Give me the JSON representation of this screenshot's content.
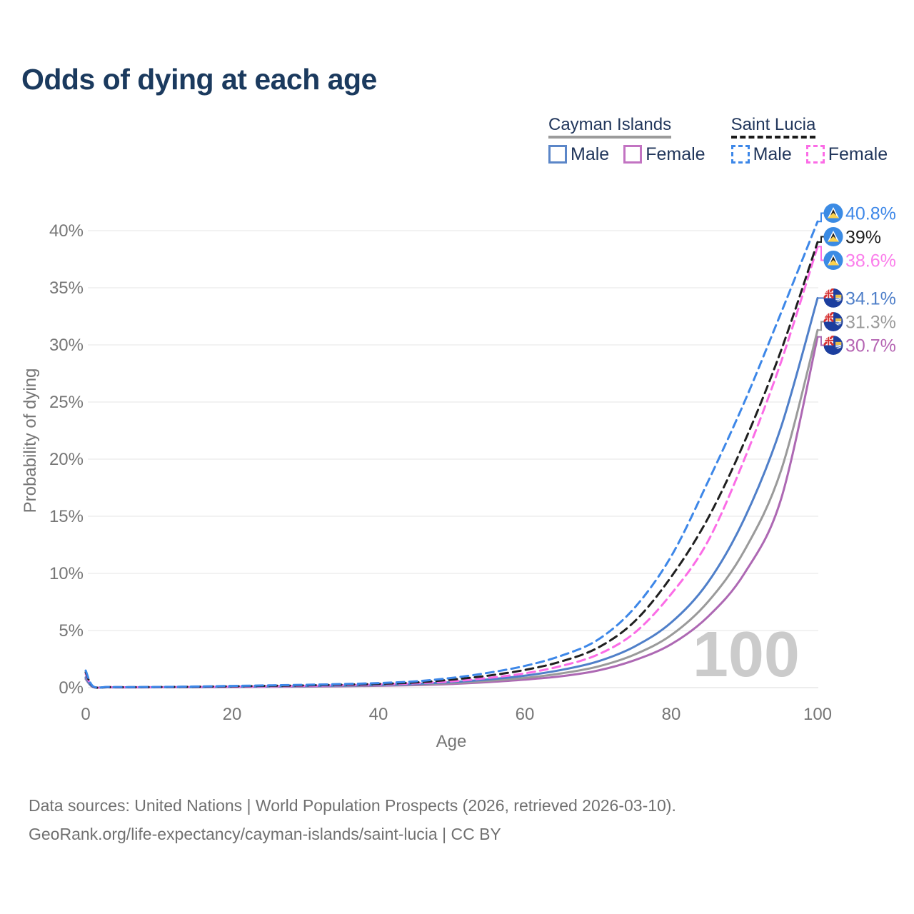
{
  "title": "Odds of dying at each age",
  "legend": {
    "groups": [
      {
        "label": "Cayman Islands",
        "line_style": "solid",
        "underline_color": "#9b9b9b",
        "items": [
          {
            "label": "Male",
            "color": "#5b86c8",
            "dashed": false
          },
          {
            "label": "Female",
            "color": "#c273c2",
            "dashed": false
          }
        ]
      },
      {
        "label": "Saint Lucia",
        "line_style": "dashed",
        "underline_color": "#1a1a1a",
        "items": [
          {
            "label": "Male",
            "color": "#3d87e8",
            "dashed": true
          },
          {
            "label": "Female",
            "color": "#fb6ce6",
            "dashed": true
          }
        ]
      }
    ]
  },
  "chart_data": {
    "type": "line",
    "title": "Odds of dying at each age",
    "xlabel": "Age",
    "ylabel": "Probability of dying",
    "xlim": [
      0,
      100
    ],
    "ylim_percent": [
      0,
      42
    ],
    "x_ticks": [
      0,
      20,
      40,
      60,
      80,
      100
    ],
    "y_ticks_percent": [
      0,
      5,
      10,
      15,
      20,
      25,
      30,
      35,
      40
    ],
    "grid": "horizontal",
    "legend_position": "top-right",
    "watermark": "100",
    "ages": [
      0,
      1,
      3,
      5,
      10,
      15,
      20,
      25,
      30,
      35,
      40,
      45,
      50,
      55,
      60,
      65,
      70,
      75,
      80,
      85,
      90,
      95,
      100
    ],
    "series": [
      {
        "name": "Saint Lucia Male",
        "flag": "saint-lucia",
        "color": "#3d87e8",
        "dash": true,
        "end_label": "40.8%",
        "end_value_percent": 40.8,
        "label_color": "#3d87e8",
        "values_percent": [
          1.5,
          0.12,
          0.06,
          0.05,
          0.06,
          0.1,
          0.15,
          0.2,
          0.25,
          0.31,
          0.4,
          0.55,
          0.85,
          1.3,
          1.9,
          2.8,
          4.2,
          7.0,
          11.5,
          18.0,
          25.0,
          32.8,
          40.8
        ]
      },
      {
        "name": "Saint Lucia",
        "flag": "saint-lucia",
        "color": "#1f1f1f",
        "dash": true,
        "end_label": "39%",
        "end_value_percent": 39,
        "label_color": "#1f1f1f",
        "values_percent": [
          1.35,
          0.1,
          0.05,
          0.04,
          0.05,
          0.08,
          0.12,
          0.16,
          0.2,
          0.26,
          0.33,
          0.45,
          0.7,
          1.05,
          1.55,
          2.3,
          3.5,
          5.8,
          9.7,
          14.8,
          21.5,
          29.5,
          39.0
        ]
      },
      {
        "name": "Saint Lucia Female",
        "flag": "saint-lucia",
        "color": "#fb6ce6",
        "dash": true,
        "end_label": "38.6%",
        "end_value_percent": 38.6,
        "label_color": "#fb7deb",
        "values_percent": [
          1.2,
          0.09,
          0.05,
          0.04,
          0.04,
          0.07,
          0.09,
          0.12,
          0.16,
          0.21,
          0.28,
          0.38,
          0.55,
          0.85,
          1.25,
          1.9,
          2.9,
          4.8,
          8.2,
          12.8,
          20.0,
          28.5,
          38.6
        ]
      },
      {
        "name": "Cayman Islands Male",
        "flag": "cayman-islands",
        "color": "#4f7fc9",
        "dash": false,
        "end_label": "34.1%",
        "end_value_percent": 34.1,
        "label_color": "#4f7fc9",
        "values_percent": [
          0.9,
          0.07,
          0.04,
          0.03,
          0.04,
          0.05,
          0.08,
          0.11,
          0.14,
          0.18,
          0.24,
          0.33,
          0.48,
          0.72,
          1.05,
          1.55,
          2.3,
          3.6,
          5.7,
          9.2,
          14.8,
          22.8,
          34.1
        ]
      },
      {
        "name": "Cayman Islands",
        "flag": "cayman-islands",
        "color": "#9a9a9a",
        "dash": false,
        "end_label": "31.3%",
        "end_value_percent": 31.3,
        "label_color": "#9a9a9a",
        "values_percent": [
          0.8,
          0.06,
          0.03,
          0.03,
          0.03,
          0.04,
          0.07,
          0.09,
          0.12,
          0.15,
          0.2,
          0.28,
          0.4,
          0.6,
          0.85,
          1.25,
          1.85,
          2.9,
          4.6,
          7.5,
          12.0,
          19.0,
          31.3
        ]
      },
      {
        "name": "Cayman Islands Female",
        "flag": "cayman-islands",
        "color": "#ad68b3",
        "dash": false,
        "end_label": "30.7%",
        "end_value_percent": 30.7,
        "label_color": "#b565b3",
        "values_percent": [
          0.75,
          0.05,
          0.03,
          0.02,
          0.03,
          0.04,
          0.05,
          0.07,
          0.09,
          0.12,
          0.16,
          0.22,
          0.32,
          0.48,
          0.7,
          1.0,
          1.5,
          2.4,
          3.8,
          6.2,
          10.0,
          16.5,
          30.7
        ]
      }
    ]
  },
  "footer": {
    "line1": "Data sources: United Nations | World Population Prospects (2026, retrieved 2026-03-10).",
    "line2": "GeoRank.org/life-expectancy/cayman-islands/saint-lucia | CC BY"
  }
}
